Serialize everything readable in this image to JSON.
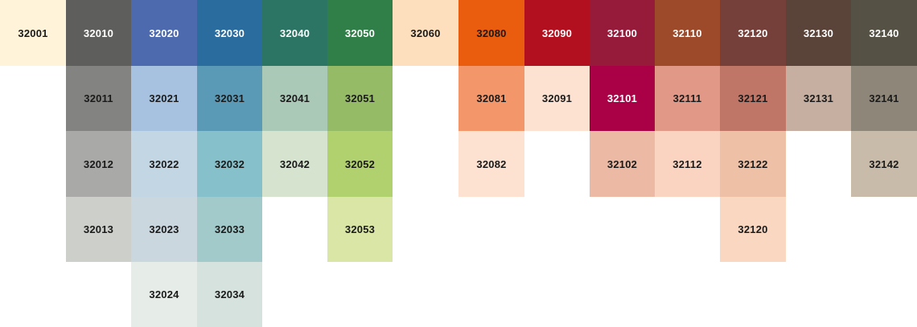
{
  "palette": {
    "columns": [
      {
        "swatches": [
          {
            "code": "32001",
            "color": "#FFF4D9",
            "text_color": "#1a1a1a"
          }
        ]
      },
      {
        "swatches": [
          {
            "code": "32010",
            "color": "#5E5E5C",
            "text_color": "#ffffff"
          },
          {
            "code": "32011",
            "color": "#838381",
            "text_color": "#1a1a1a"
          },
          {
            "code": "32012",
            "color": "#A9A9A8",
            "text_color": "#1a1a1a"
          },
          {
            "code": "32013",
            "color": "#CDCFCA",
            "text_color": "#1a1a1a"
          }
        ]
      },
      {
        "swatches": [
          {
            "code": "32020",
            "color": "#4E6AAF",
            "text_color": "#ffffff"
          },
          {
            "code": "32021",
            "color": "#A6C2E0",
            "text_color": "#1a1a1a"
          },
          {
            "code": "32022",
            "color": "#C3D6E3",
            "text_color": "#1a1a1a"
          },
          {
            "code": "32023",
            "color": "#CBD7DF",
            "text_color": "#1a1a1a"
          },
          {
            "code": "32024",
            "color": "#E6EDE8",
            "text_color": "#1a1a1a"
          }
        ]
      },
      {
        "swatches": [
          {
            "code": "32030",
            "color": "#2A6C9E",
            "text_color": "#ffffff"
          },
          {
            "code": "32031",
            "color": "#5B9AB7",
            "text_color": "#1a1a1a"
          },
          {
            "code": "32032",
            "color": "#86C0CA",
            "text_color": "#1a1a1a"
          },
          {
            "code": "32033",
            "color": "#A3CACA",
            "text_color": "#1a1a1a"
          },
          {
            "code": "32034",
            "color": "#D5E2DE",
            "text_color": "#1a1a1a"
          }
        ]
      },
      {
        "swatches": [
          {
            "code": "32040",
            "color": "#2C7565",
            "text_color": "#ffffff"
          },
          {
            "code": "32041",
            "color": "#AAC9B7",
            "text_color": "#1a1a1a"
          },
          {
            "code": "32042",
            "color": "#D6E3CF",
            "text_color": "#1a1a1a"
          }
        ]
      },
      {
        "swatches": [
          {
            "code": "32050",
            "color": "#317F48",
            "text_color": "#ffffff"
          },
          {
            "code": "32051",
            "color": "#96BB67",
            "text_color": "#1a1a1a"
          },
          {
            "code": "32052",
            "color": "#B1D06E",
            "text_color": "#1a1a1a"
          },
          {
            "code": "32053",
            "color": "#DAE6A6",
            "text_color": "#1a1a1a"
          }
        ]
      },
      {
        "swatches": [
          {
            "code": "32060",
            "color": "#FDDFBD",
            "text_color": "#1a1a1a"
          }
        ]
      },
      {
        "swatches": [
          {
            "code": "32080",
            "color": "#EA5D0F",
            "text_color": "#1a1a1a"
          },
          {
            "code": "32081",
            "color": "#F3976B",
            "text_color": "#1a1a1a"
          },
          {
            "code": "32082",
            "color": "#FDE1D1",
            "text_color": "#1a1a1a"
          }
        ]
      },
      {
        "swatches": [
          {
            "code": "32090",
            "color": "#B20F1F",
            "text_color": "#ffffff"
          },
          {
            "code": "32091",
            "color": "#FDE2D2",
            "text_color": "#1a1a1a"
          }
        ]
      },
      {
        "swatches": [
          {
            "code": "32100",
            "color": "#961A3A",
            "text_color": "#ffffff"
          },
          {
            "code": "32101",
            "color": "#AA0045",
            "text_color": "#ffffff"
          },
          {
            "code": "32102",
            "color": "#EBB9A4",
            "text_color": "#1a1a1a"
          }
        ]
      },
      {
        "swatches": [
          {
            "code": "32110",
            "color": "#9C4A2A",
            "text_color": "#ffffff"
          },
          {
            "code": "32111",
            "color": "#E29886",
            "text_color": "#1a1a1a"
          },
          {
            "code": "32112",
            "color": "#FAD4C1",
            "text_color": "#1a1a1a"
          }
        ]
      },
      {
        "swatches": [
          {
            "code": "32120",
            "color": "#75403A",
            "text_color": "#ffffff"
          },
          {
            "code": "32121",
            "color": "#BF7667",
            "text_color": "#1a1a1a"
          },
          {
            "code": "32122",
            "color": "#EEC0A5",
            "text_color": "#1a1a1a"
          },
          {
            "code": "32120",
            "color": "#FAD7C1",
            "text_color": "#1a1a1a"
          }
        ]
      },
      {
        "swatches": [
          {
            "code": "32130",
            "color": "#5A4339",
            "text_color": "#ffffff"
          },
          {
            "code": "32131",
            "color": "#C6AFA0",
            "text_color": "#1a1a1a"
          }
        ]
      },
      {
        "swatches": [
          {
            "code": "32140",
            "color": "#555145",
            "text_color": "#ffffff"
          },
          {
            "code": "32141",
            "color": "#8E8678",
            "text_color": "#1a1a1a"
          },
          {
            "code": "32142",
            "color": "#C9BBA9",
            "text_color": "#1a1a1a"
          }
        ]
      }
    ]
  }
}
